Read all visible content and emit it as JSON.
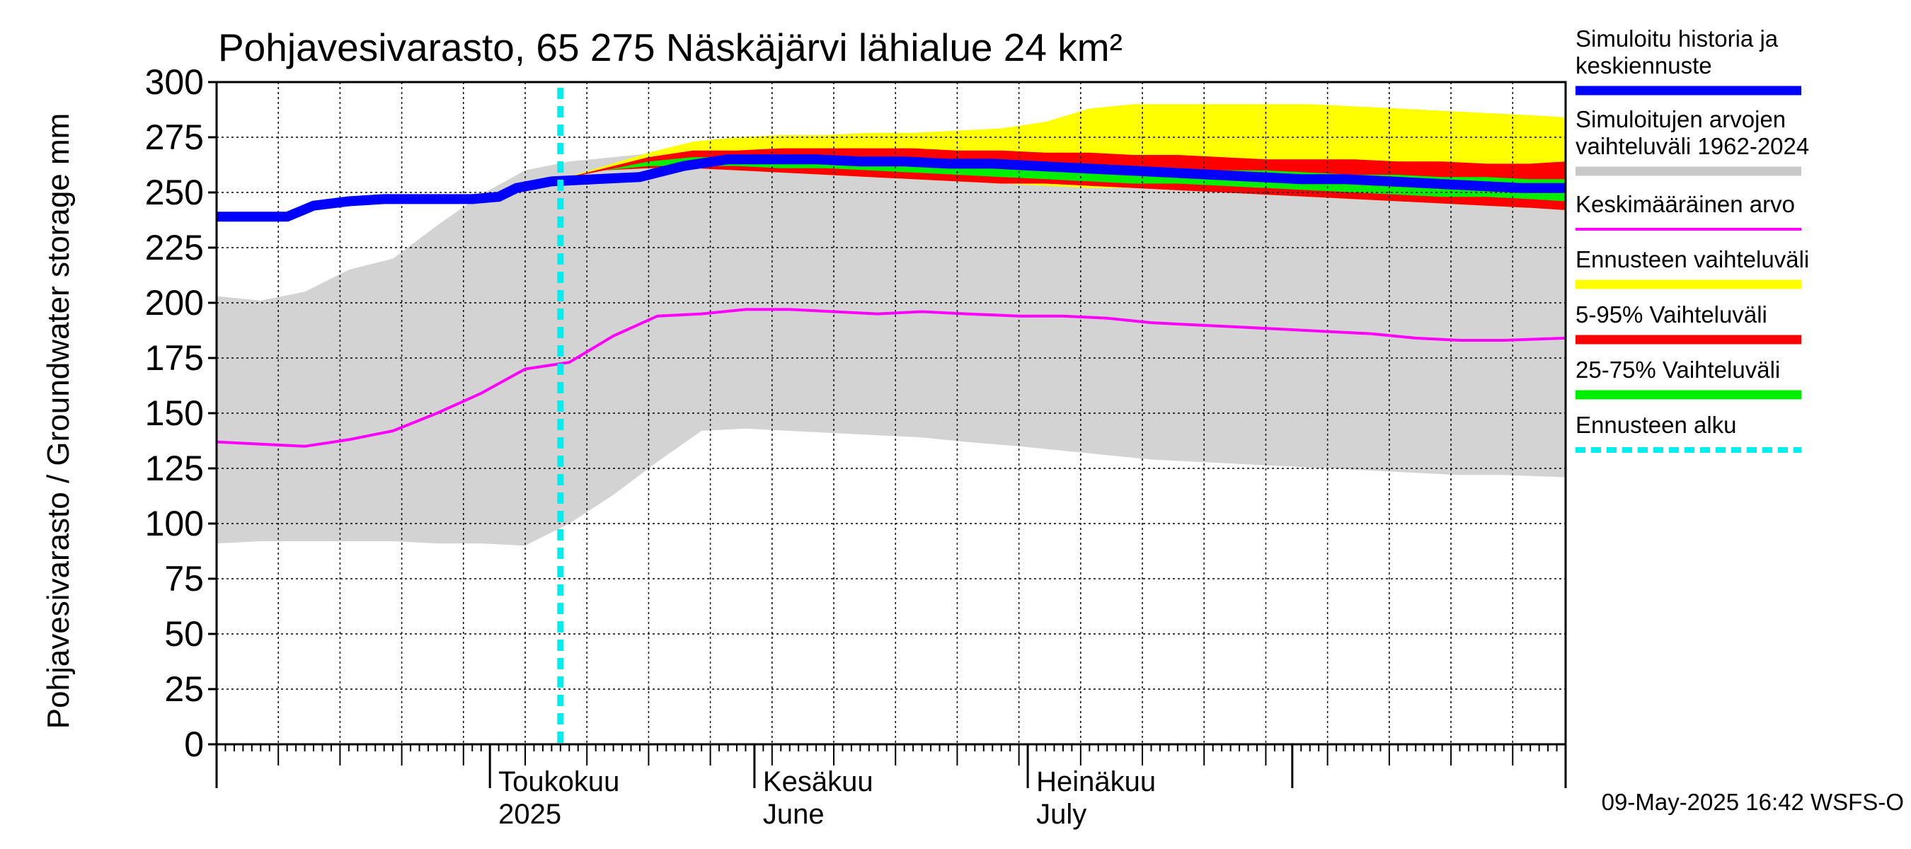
{
  "chart_data": {
    "type": "area",
    "title": "Pohjavesivarasto, 65 275 Näskäjärvi lähialue 24 km²",
    "ylabel": "Pohjavesivarasto / Groundwater storage   mm",
    "ylim": [
      0,
      300
    ],
    "yticks": [
      0,
      25,
      50,
      75,
      100,
      125,
      150,
      175,
      200,
      225,
      250,
      275,
      300
    ],
    "xlim": [
      "2025-03-01",
      "2025-08-01"
    ],
    "grid": true,
    "legend_position": "right",
    "month_labels": [
      {
        "date": "2025-04-01",
        "line1": "Toukokuu",
        "line2": "2025"
      },
      {
        "date": "2025-05-01",
        "line1": "Kesäkuu",
        "line2": "June"
      },
      {
        "date": "2025-06-01",
        "line1": "Heinäkuu",
        "line2": "July"
      }
    ],
    "forecast_start": "2025-04-09",
    "timestamp": "09-May-2025 16:42 WSFS-O",
    "legend": [
      {
        "label_lines": [
          "Simuloitu historia ja",
          "keskiennuste"
        ],
        "color": "#0000ff",
        "style": "solid"
      },
      {
        "label_lines": [
          "Simuloitujen arvojen",
          "vaihteluväli 1962-2024"
        ],
        "color": "#c8c8c8",
        "style": "solid"
      },
      {
        "label_lines": [
          "Keskimääräinen arvo"
        ],
        "color": "#ff00ff",
        "style": "thin"
      },
      {
        "label_lines": [
          "Ennusteen vaihteluväli"
        ],
        "color": "#ffff00",
        "style": "solid"
      },
      {
        "label_lines": [
          "5-95% Vaihteluväli"
        ],
        "color": "#ff0000",
        "style": "solid"
      },
      {
        "label_lines": [
          "25-75% Vaihteluväli"
        ],
        "color": "#00ee00",
        "style": "solid"
      },
      {
        "label_lines": [
          "Ennusteen alku"
        ],
        "color": "#00eeee",
        "style": "dashed"
      }
    ],
    "series": [
      {
        "name": "Simuloitujen arvojen vaihteluväli 1962-2024",
        "kind": "band",
        "color": "#d3d3d3",
        "x": [
          "2025-03-01",
          "2025-03-06",
          "2025-03-11",
          "2025-03-16",
          "2025-03-21",
          "2025-03-26",
          "2025-03-31",
          "2025-04-05",
          "2025-04-10",
          "2025-04-15",
          "2025-04-20",
          "2025-04-25",
          "2025-04-30",
          "2025-05-05",
          "2025-05-10",
          "2025-05-15",
          "2025-05-20",
          "2025-05-25",
          "2025-05-31",
          "2025-06-05",
          "2025-06-10",
          "2025-06-15",
          "2025-06-20",
          "2025-06-25",
          "2025-06-30",
          "2025-07-05",
          "2025-07-10",
          "2025-07-15",
          "2025-07-20",
          "2025-07-25",
          "2025-08-01"
        ],
        "upper": [
          203,
          201,
          205,
          215,
          220,
          235,
          249,
          260,
          264,
          266,
          268,
          268,
          269,
          271,
          272,
          273,
          273,
          275,
          277,
          279,
          280,
          279,
          279,
          280,
          281,
          281,
          282,
          282,
          280,
          280,
          280
        ],
        "lower": [
          91,
          92,
          92,
          92,
          92,
          91,
          91,
          90,
          100,
          113,
          128,
          142,
          143,
          142,
          141,
          140,
          139,
          137,
          135,
          133,
          131,
          129,
          128,
          127,
          126,
          125,
          124,
          123,
          122,
          122,
          121
        ]
      },
      {
        "name": "Ennusteen vaihteluväli",
        "kind": "band",
        "color": "#ffff00",
        "x": [
          "2025-04-09",
          "2025-04-14",
          "2025-04-19",
          "2025-04-24",
          "2025-04-29",
          "2025-05-04",
          "2025-05-09",
          "2025-05-14",
          "2025-05-19",
          "2025-05-24",
          "2025-05-29",
          "2025-06-03",
          "2025-06-08",
          "2025-06-13",
          "2025-06-18",
          "2025-06-23",
          "2025-06-28",
          "2025-07-03",
          "2025-07-08",
          "2025-07-13",
          "2025-07-18",
          "2025-07-23",
          "2025-07-28",
          "2025-08-01"
        ],
        "upper": [
          256,
          262,
          268,
          273,
          275,
          276,
          276,
          277,
          277,
          278,
          279,
          282,
          288,
          290,
          290,
          290,
          290,
          290,
          289,
          288,
          287,
          286,
          285,
          284
        ],
        "lower": [
          256,
          260,
          261,
          261,
          260,
          259,
          258,
          257,
          256,
          255,
          254,
          253,
          252,
          252,
          251,
          250,
          249,
          248,
          247,
          246,
          245,
          244,
          243,
          242
        ]
      },
      {
        "name": "5-95% Vaihteluväli",
        "kind": "band",
        "color": "#ff0000",
        "x": [
          "2025-04-09",
          "2025-04-14",
          "2025-04-19",
          "2025-04-24",
          "2025-04-29",
          "2025-05-04",
          "2025-05-09",
          "2025-05-14",
          "2025-05-19",
          "2025-05-24",
          "2025-05-29",
          "2025-06-03",
          "2025-06-08",
          "2025-06-13",
          "2025-06-18",
          "2025-06-23",
          "2025-06-28",
          "2025-07-03",
          "2025-07-08",
          "2025-07-13",
          "2025-07-18",
          "2025-07-23",
          "2025-07-28",
          "2025-08-01"
        ],
        "upper": [
          256,
          261,
          266,
          269,
          269,
          270,
          270,
          270,
          270,
          269,
          269,
          268,
          268,
          267,
          267,
          266,
          265,
          265,
          265,
          264,
          264,
          263,
          263,
          264
        ],
        "lower": [
          256,
          260,
          261,
          261,
          260,
          259,
          258,
          257,
          256,
          255,
          254,
          254,
          253,
          252,
          251,
          250,
          249,
          248,
          247,
          246,
          245,
          244,
          243,
          242
        ]
      },
      {
        "name": "25-75% Vaihteluväli",
        "kind": "band",
        "color": "#00ee00",
        "x": [
          "2025-04-09",
          "2025-04-14",
          "2025-04-19",
          "2025-04-24",
          "2025-04-29",
          "2025-05-04",
          "2025-05-09",
          "2025-05-14",
          "2025-05-19",
          "2025-05-24",
          "2025-05-29",
          "2025-06-03",
          "2025-06-08",
          "2025-06-13",
          "2025-06-18",
          "2025-06-23",
          "2025-06-28",
          "2025-07-03",
          "2025-07-08",
          "2025-07-13",
          "2025-07-18",
          "2025-07-23",
          "2025-07-28",
          "2025-08-01"
        ],
        "upper": [
          256,
          260,
          264,
          266,
          266,
          266,
          266,
          266,
          266,
          265,
          264,
          263,
          262,
          262,
          261,
          260,
          260,
          259,
          258,
          258,
          257,
          257,
          256,
          256
        ],
        "lower": [
          256,
          260,
          262,
          262,
          262,
          261,
          261,
          260,
          259,
          258,
          257,
          256,
          255,
          254,
          254,
          253,
          252,
          251,
          250,
          249,
          248,
          248,
          247,
          246
        ]
      },
      {
        "name": "Simuloitu historia ja keskiennuste",
        "kind": "line",
        "color": "#0000ff",
        "width": 14,
        "x": [
          "2025-03-01",
          "2025-03-05",
          "2025-03-09",
          "2025-03-12",
          "2025-03-16",
          "2025-03-20",
          "2025-03-25",
          "2025-03-30",
          "2025-04-02",
          "2025-04-04",
          "2025-04-08",
          "2025-04-13",
          "2025-04-18",
          "2025-04-23",
          "2025-04-28",
          "2025-05-03",
          "2025-05-08",
          "2025-05-13",
          "2025-05-18",
          "2025-05-23",
          "2025-05-28",
          "2025-06-02",
          "2025-06-07",
          "2025-06-12",
          "2025-06-17",
          "2025-06-22",
          "2025-06-27",
          "2025-07-02",
          "2025-07-07",
          "2025-07-12",
          "2025-07-17",
          "2025-07-22",
          "2025-07-27",
          "2025-08-01"
        ],
        "y": [
          239,
          239,
          239,
          244,
          246,
          247,
          247,
          247,
          248,
          252,
          255,
          256,
          257,
          262,
          265,
          265,
          265,
          264,
          264,
          263,
          263,
          262,
          261,
          260,
          259,
          258,
          257,
          256,
          256,
          255,
          254,
          253,
          252,
          252
        ]
      },
      {
        "name": "Keskimääräinen arvo",
        "kind": "line",
        "color": "#ff00ff",
        "width": 4,
        "x": [
          "2025-03-01",
          "2025-03-06",
          "2025-03-11",
          "2025-03-16",
          "2025-03-21",
          "2025-03-26",
          "2025-03-31",
          "2025-04-05",
          "2025-04-10",
          "2025-04-15",
          "2025-04-20",
          "2025-04-25",
          "2025-04-30",
          "2025-05-05",
          "2025-05-10",
          "2025-05-15",
          "2025-05-20",
          "2025-05-25",
          "2025-05-31",
          "2025-06-05",
          "2025-06-10",
          "2025-06-15",
          "2025-06-20",
          "2025-06-25",
          "2025-06-30",
          "2025-07-05",
          "2025-07-10",
          "2025-07-15",
          "2025-07-20",
          "2025-07-25",
          "2025-08-01"
        ],
        "y": [
          137,
          136,
          135,
          138,
          142,
          150,
          159,
          170,
          173,
          185,
          194,
          195,
          197,
          197,
          196,
          195,
          196,
          195,
          194,
          194,
          193,
          191,
          190,
          189,
          188,
          187,
          186,
          184,
          183,
          183,
          184
        ]
      }
    ]
  }
}
